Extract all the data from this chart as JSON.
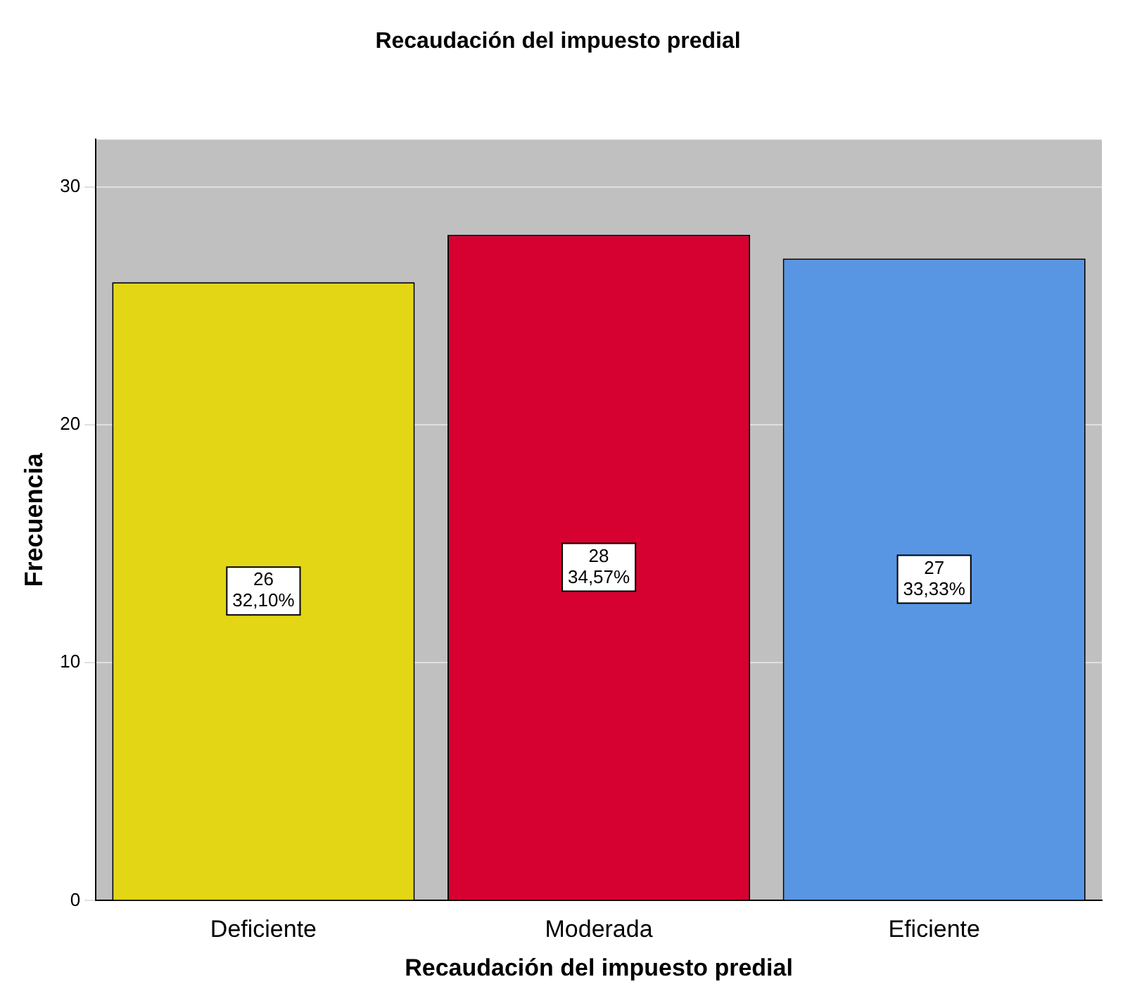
{
  "chart_data": {
    "type": "bar",
    "title": "Recaudación del impuesto predial",
    "xlabel": "Recaudación del impuesto predial",
    "ylabel": "Frecuencia",
    "categories": [
      "Deficiente",
      "Moderada",
      "Eficiente"
    ],
    "values": [
      26,
      28,
      27
    ],
    "colors": [
      "#e3d614",
      "#d70131",
      "#5896e4"
    ],
    "value_labels": [
      "26\n32,10%",
      "28\n34,57%",
      "27\n33,33%"
    ],
    "ylim": [
      0,
      32
    ],
    "yticks": [
      0,
      10,
      20,
      30
    ],
    "grid": "y",
    "legend": false
  }
}
